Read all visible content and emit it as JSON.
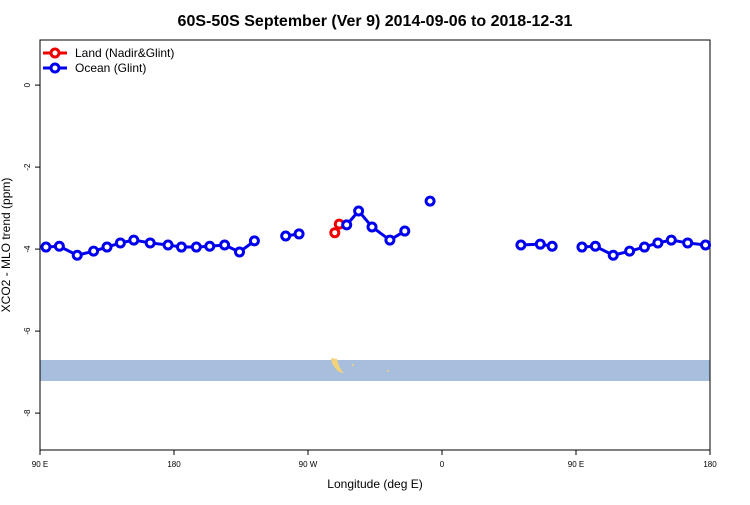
{
  "chart_data": {
    "type": "line",
    "title": "60S-50S September (Ver 9)   2014-09-06 to 2018-12-31",
    "x_label": "Longitude (deg E)",
    "y_label": "XCO2 - MLO trend (ppm)",
    "xlim": [
      90,
      540
    ],
    "xticks": [
      {
        "value": 90,
        "label": "90 E"
      },
      180,
      {
        "value": 270,
        "label": "90 W"
      },
      {
        "value": 360,
        "label": "0"
      },
      {
        "value": 450,
        "label": "90 E"
      },
      {
        "value": 540,
        "label": "180"
      }
    ],
    "ylim": [
      -8.9,
      1.1
    ],
    "yticks": [
      0,
      -2,
      -4,
      -6,
      -8
    ],
    "legend": "top-left",
    "series": [
      {
        "name": "Land (Nadir&Glint)",
        "color": "#ee0000",
        "x": [
          288,
          291
        ],
        "values": [
          -3.6,
          -3.39
        ]
      },
      {
        "name": "Ocean (Glint)",
        "color": "#0000ee",
        "x": [
          94,
          103,
          115,
          126,
          135,
          144,
          153,
          164,
          176,
          185,
          195,
          204,
          214,
          224,
          234,
          245,
          255,
          264,
          280,
          296,
          304,
          313,
          325,
          335,
          343,
          352,
          380,
          413,
          426,
          434,
          444,
          454,
          463,
          475,
          486,
          496,
          505,
          514,
          525,
          537
        ],
        "values": [
          -3.95,
          -3.93,
          -4.15,
          -4.05,
          -3.95,
          -3.85,
          -3.78,
          -3.85,
          -3.9,
          -3.95,
          -3.95,
          -3.93,
          -3.9,
          -4.07,
          -3.8,
          null,
          -3.68,
          -3.63,
          null,
          -3.41,
          -3.07,
          -3.46,
          -3.78,
          -3.56,
          null,
          -2.83,
          null,
          -3.9,
          -3.88,
          -3.93,
          null,
          -3.95,
          -3.93,
          -4.15,
          -4.05,
          -3.95,
          -3.85,
          -3.78,
          -3.85,
          -3.9
        ]
      }
    ]
  }
}
